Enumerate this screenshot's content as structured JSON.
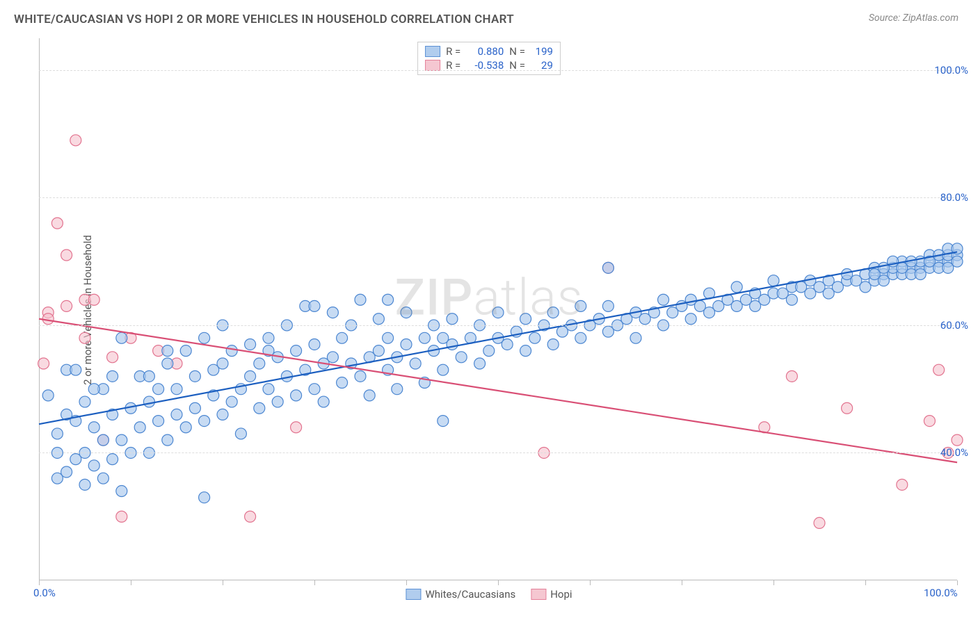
{
  "title": "WHITE/CAUCASIAN VS HOPI 2 OR MORE VEHICLES IN HOUSEHOLD CORRELATION CHART",
  "source_label": "Source:",
  "source_name": "ZipAtlas.com",
  "y_axis_label": "2 or more Vehicles in Household",
  "watermark": "ZIPatlas",
  "chart": {
    "type": "scatter",
    "background_color": "#ffffff",
    "grid_color": "#dddddd",
    "border_color": "#bbbbbb",
    "xlim": [
      0,
      100
    ],
    "ylim": [
      20,
      105
    ],
    "y_ticks": [
      {
        "v": 40,
        "label": "40.0%"
      },
      {
        "v": 60,
        "label": "60.0%"
      },
      {
        "v": 80,
        "label": "80.0%"
      },
      {
        "v": 100,
        "label": "100.0%"
      }
    ],
    "x_ticks": [
      0,
      10,
      20,
      30,
      40,
      50,
      60,
      70,
      80,
      90,
      100
    ],
    "x_labels": [
      {
        "v": 0,
        "label": "0.0%"
      },
      {
        "v": 100,
        "label": "100.0%"
      }
    ],
    "tick_label_color": "#2962c9",
    "tick_label_fontsize": 15,
    "marker_radius": 8,
    "marker_stroke_width": 1.2,
    "line_width": 2.2
  },
  "series": [
    {
      "name": "Whites/Caucasians",
      "fill": "#a9c8ed",
      "stroke": "#4b86d1",
      "fill_opacity": 0.65,
      "line_color": "#1c5fc0",
      "regression": {
        "x1": 0,
        "y1": 44.5,
        "x2": 100,
        "y2": 71.5
      },
      "stats": {
        "R": "0.880",
        "N": "199"
      },
      "points": [
        [
          1,
          49
        ],
        [
          2,
          36
        ],
        [
          2,
          43
        ],
        [
          3,
          37
        ],
        [
          3,
          53
        ],
        [
          4,
          39
        ],
        [
          4,
          45
        ],
        [
          5,
          35
        ],
        [
          5,
          40
        ],
        [
          5,
          48
        ],
        [
          6,
          38
        ],
        [
          6,
          44
        ],
        [
          7,
          36
        ],
        [
          7,
          42
        ],
        [
          7,
          50
        ],
        [
          8,
          39
        ],
        [
          8,
          46
        ],
        [
          9,
          34
        ],
        [
          9,
          42
        ],
        [
          10,
          40
        ],
        [
          10,
          47
        ],
        [
          11,
          44
        ],
        [
          11,
          52
        ],
        [
          12,
          40
        ],
        [
          12,
          48
        ],
        [
          13,
          45
        ],
        [
          13,
          50
        ],
        [
          14,
          42
        ],
        [
          14,
          54
        ],
        [
          15,
          46
        ],
        [
          15,
          50
        ],
        [
          16,
          44
        ],
        [
          16,
          56
        ],
        [
          17,
          47
        ],
        [
          17,
          52
        ],
        [
          18,
          45
        ],
        [
          18,
          58
        ],
        [
          19,
          49
        ],
        [
          19,
          53
        ],
        [
          20,
          46
        ],
        [
          20,
          54
        ],
        [
          21,
          48
        ],
        [
          21,
          56
        ],
        [
          22,
          50
        ],
        [
          22,
          43
        ],
        [
          23,
          52
        ],
        [
          23,
          57
        ],
        [
          24,
          47
        ],
        [
          24,
          54
        ],
        [
          25,
          50
        ],
        [
          25,
          58
        ],
        [
          26,
          48
        ],
        [
          26,
          55
        ],
        [
          27,
          52
        ],
        [
          27,
          60
        ],
        [
          28,
          49
        ],
        [
          28,
          56
        ],
        [
          29,
          53
        ],
        [
          29,
          63
        ],
        [
          30,
          50
        ],
        [
          30,
          57
        ],
        [
          31,
          54
        ],
        [
          31,
          48
        ],
        [
          32,
          55
        ],
        [
          32,
          62
        ],
        [
          33,
          51
        ],
        [
          33,
          58
        ],
        [
          34,
          54
        ],
        [
          34,
          60
        ],
        [
          35,
          52
        ],
        [
          35,
          64
        ],
        [
          36,
          55
        ],
        [
          36,
          49
        ],
        [
          37,
          56
        ],
        [
          37,
          61
        ],
        [
          38,
          53
        ],
        [
          38,
          58
        ],
        [
          39,
          55
        ],
        [
          39,
          50
        ],
        [
          40,
          57
        ],
        [
          40,
          62
        ],
        [
          41,
          54
        ],
        [
          42,
          58
        ],
        [
          42,
          51
        ],
        [
          43,
          56
        ],
        [
          43,
          60
        ],
        [
          44,
          53
        ],
        [
          44,
          45
        ],
        [
          45,
          57
        ],
        [
          45,
          61
        ],
        [
          46,
          55
        ],
        [
          47,
          58
        ],
        [
          48,
          54
        ],
        [
          48,
          60
        ],
        [
          49,
          56
        ],
        [
          50,
          58
        ],
        [
          50,
          62
        ],
        [
          51,
          57
        ],
        [
          52,
          59
        ],
        [
          53,
          56
        ],
        [
          53,
          61
        ],
        [
          54,
          58
        ],
        [
          55,
          60
        ],
        [
          56,
          57
        ],
        [
          56,
          62
        ],
        [
          57,
          59
        ],
        [
          58,
          60
        ],
        [
          59,
          58
        ],
        [
          59,
          63
        ],
        [
          60,
          60
        ],
        [
          61,
          61
        ],
        [
          62,
          59
        ],
        [
          62,
          63
        ],
        [
          63,
          60
        ],
        [
          64,
          61
        ],
        [
          65,
          62
        ],
        [
          65,
          58
        ],
        [
          66,
          61
        ],
        [
          67,
          62
        ],
        [
          68,
          60
        ],
        [
          68,
          64
        ],
        [
          69,
          62
        ],
        [
          70,
          63
        ],
        [
          71,
          61
        ],
        [
          71,
          64
        ],
        [
          72,
          63
        ],
        [
          73,
          62
        ],
        [
          73,
          65
        ],
        [
          74,
          63
        ],
        [
          75,
          64
        ],
        [
          76,
          63
        ],
        [
          76,
          66
        ],
        [
          77,
          64
        ],
        [
          78,
          65
        ],
        [
          78,
          63
        ],
        [
          79,
          64
        ],
        [
          80,
          65
        ],
        [
          80,
          67
        ],
        [
          81,
          65
        ],
        [
          82,
          66
        ],
        [
          82,
          64
        ],
        [
          83,
          66
        ],
        [
          84,
          65
        ],
        [
          84,
          67
        ],
        [
          85,
          66
        ],
        [
          86,
          67
        ],
        [
          86,
          65
        ],
        [
          87,
          66
        ],
        [
          88,
          67
        ],
        [
          88,
          68
        ],
        [
          89,
          67
        ],
        [
          90,
          68
        ],
        [
          90,
          66
        ],
        [
          91,
          67
        ],
        [
          91,
          69
        ],
        [
          92,
          68
        ],
        [
          92,
          67
        ],
        [
          93,
          68
        ],
        [
          93,
          69
        ],
        [
          94,
          68
        ],
        [
          94,
          70
        ],
        [
          95,
          69
        ],
        [
          95,
          68
        ],
        [
          96,
          69
        ],
        [
          96,
          70
        ],
        [
          97,
          69
        ],
        [
          97,
          71
        ],
        [
          98,
          70
        ],
        [
          98,
          69
        ],
        [
          98,
          71
        ],
        [
          99,
          70
        ],
        [
          99,
          71
        ],
        [
          99,
          72
        ],
        [
          100,
          71
        ],
        [
          100,
          72
        ],
        [
          62,
          69
        ],
        [
          9,
          58
        ],
        [
          18,
          33
        ],
        [
          30,
          63
        ],
        [
          38,
          64
        ],
        [
          25,
          56
        ],
        [
          14,
          56
        ],
        [
          20,
          60
        ],
        [
          44,
          58
        ],
        [
          12,
          52
        ],
        [
          4,
          53
        ],
        [
          6,
          50
        ],
        [
          8,
          52
        ],
        [
          3,
          46
        ],
        [
          2,
          40
        ],
        [
          100,
          70
        ],
        [
          99,
          69
        ],
        [
          97,
          70
        ],
        [
          96,
          68
        ],
        [
          95,
          70
        ],
        [
          94,
          69
        ],
        [
          93,
          70
        ],
        [
          92,
          69
        ],
        [
          91,
          68
        ]
      ]
    },
    {
      "name": "Hopi",
      "fill": "#f5c2cd",
      "stroke": "#e2738f",
      "fill_opacity": 0.6,
      "line_color": "#d94f75",
      "regression": {
        "x1": 0,
        "y1": 61,
        "x2": 100,
        "y2": 38.5
      },
      "stats": {
        "R": "-0.538",
        "N": "29"
      },
      "points": [
        [
          0.5,
          54
        ],
        [
          1,
          62
        ],
        [
          1,
          61
        ],
        [
          2,
          76
        ],
        [
          3,
          63
        ],
        [
          3,
          71
        ],
        [
          4,
          89
        ],
        [
          5,
          64
        ],
        [
          5,
          58
        ],
        [
          6,
          64
        ],
        [
          7,
          42
        ],
        [
          8,
          55
        ],
        [
          9,
          30
        ],
        [
          10,
          58
        ],
        [
          13,
          56
        ],
        [
          15,
          54
        ],
        [
          23,
          30
        ],
        [
          28,
          44
        ],
        [
          55,
          40
        ],
        [
          62,
          69
        ],
        [
          82,
          52
        ],
        [
          85,
          29
        ],
        [
          88,
          47
        ],
        [
          94,
          35
        ],
        [
          97,
          45
        ],
        [
          98,
          53
        ],
        [
          99,
          40
        ],
        [
          100,
          42
        ],
        [
          79,
          44
        ]
      ]
    }
  ],
  "stats_box": {
    "r_label": "R =",
    "n_label": "N ="
  },
  "legend": {
    "series1": "Whites/Caucasians",
    "series2": "Hopi"
  }
}
